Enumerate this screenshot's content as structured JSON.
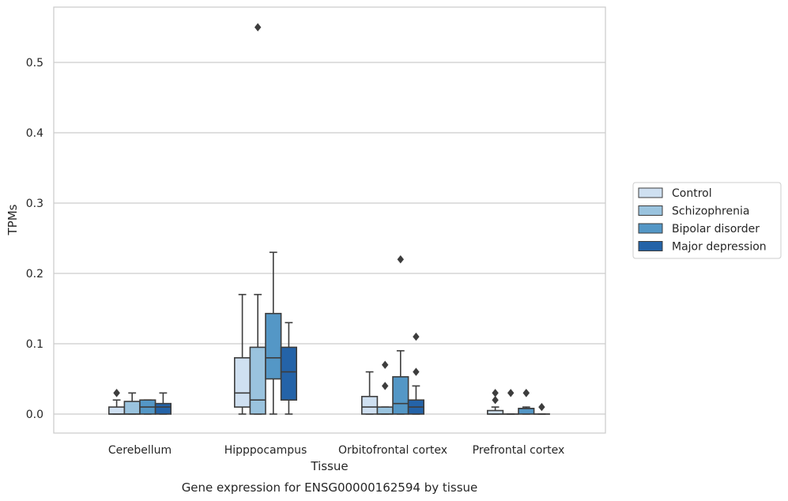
{
  "chart_data": {
    "type": "box",
    "xlabel": "Tissue",
    "ylabel": "TPMs",
    "caption": "Gene expression for ENSG00000162594 by tissue",
    "ylim": [
      -0.027,
      0.58
    ],
    "yticks": [
      "0.0",
      "0.1",
      "0.2",
      "0.3",
      "0.4",
      "0.5"
    ],
    "grid": true,
    "legend_position": "right",
    "categories": [
      "Cerebellum",
      "Hipppocampus",
      "Orbitofrontal cortex",
      "Prefrontal cortex"
    ],
    "series": [
      {
        "name": "Control",
        "color": "#cfe0f1",
        "boxes": [
          {
            "whislo": 0.0,
            "q1": 0.0,
            "med": 0.0,
            "q3": 0.01,
            "whishi": 0.02,
            "fliers": [
              0.03,
              0.03
            ]
          },
          {
            "whislo": 0.0,
            "q1": 0.01,
            "med": 0.03,
            "q3": 0.08,
            "whishi": 0.17,
            "fliers": []
          },
          {
            "whislo": 0.0,
            "q1": 0.0,
            "med": 0.01,
            "q3": 0.025,
            "whishi": 0.06,
            "fliers": []
          },
          {
            "whislo": 0.0,
            "q1": 0.0,
            "med": 0.0,
            "q3": 0.005,
            "whishi": 0.01,
            "fliers": [
              0.02,
              0.03
            ]
          }
        ]
      },
      {
        "name": "Schizophrenia",
        "color": "#9ac3de",
        "boxes": [
          {
            "whislo": 0.0,
            "q1": 0.0,
            "med": 0.0,
            "q3": 0.018,
            "whishi": 0.03,
            "fliers": []
          },
          {
            "whislo": 0.0,
            "q1": 0.0,
            "med": 0.02,
            "q3": 0.095,
            "whishi": 0.17,
            "fliers": [
              0.55
            ]
          },
          {
            "whislo": 0.0,
            "q1": 0.0,
            "med": 0.0,
            "q3": 0.01,
            "whishi": 0.01,
            "fliers": [
              0.04,
              0.07
            ]
          },
          {
            "whislo": 0.0,
            "q1": 0.0,
            "med": 0.0,
            "q3": 0.0,
            "whishi": 0.0,
            "fliers": [
              0.03
            ]
          }
        ]
      },
      {
        "name": "Bipolar disorder",
        "color": "#5497c6",
        "boxes": [
          {
            "whislo": 0.0,
            "q1": 0.0,
            "med": 0.01,
            "q3": 0.02,
            "whishi": 0.02,
            "fliers": []
          },
          {
            "whislo": 0.0,
            "q1": 0.05,
            "med": 0.08,
            "q3": 0.143,
            "whishi": 0.23,
            "fliers": []
          },
          {
            "whislo": 0.0,
            "q1": 0.0,
            "med": 0.015,
            "q3": 0.053,
            "whishi": 0.09,
            "fliers": [
              0.22
            ]
          },
          {
            "whislo": 0.0,
            "q1": 0.0,
            "med": 0.008,
            "q3": 0.008,
            "whishi": 0.01,
            "fliers": [
              0.03,
              0.03
            ]
          }
        ]
      },
      {
        "name": "Major depression",
        "color": "#2463a8",
        "boxes": [
          {
            "whislo": 0.0,
            "q1": 0.0,
            "med": 0.01,
            "q3": 0.015,
            "whishi": 0.03,
            "fliers": []
          },
          {
            "whislo": 0.0,
            "q1": 0.02,
            "med": 0.06,
            "q3": 0.095,
            "whishi": 0.13,
            "fliers": []
          },
          {
            "whislo": 0.0,
            "q1": 0.0,
            "med": 0.01,
            "q3": 0.02,
            "whishi": 0.04,
            "fliers": [
              0.06,
              0.11
            ]
          },
          {
            "whislo": 0.0,
            "q1": 0.0,
            "med": 0.0,
            "q3": 0.0,
            "whishi": 0.0,
            "fliers": [
              0.01
            ]
          }
        ]
      }
    ]
  }
}
